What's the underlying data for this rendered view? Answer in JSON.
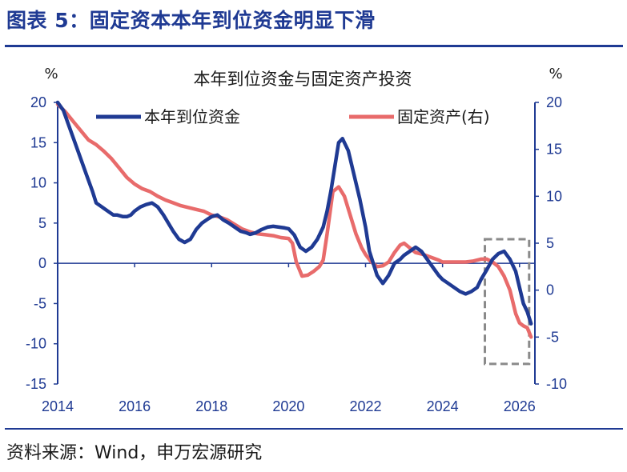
{
  "figure_title": "图表 5：固定资本本年到位资金明显下滑",
  "source": "资料来源：Wind，申万宏源研究",
  "colors": {
    "navy": "#1f3a93",
    "red": "#e86b6b",
    "box": "#8a8a8a"
  },
  "chart_data": {
    "type": "line",
    "title": "本年到位资金与固定资产投资",
    "left_unit": "%",
    "right_unit": "%",
    "ylim_left": [
      -15,
      20
    ],
    "ylim_right": [
      -10,
      20
    ],
    "xlim": [
      2014.0,
      2026.4
    ],
    "left_ticks": [
      "20",
      "15",
      "10",
      "5",
      "0",
      "-5",
      "-10",
      "-15"
    ],
    "right_ticks": [
      "20",
      "15",
      "10",
      "5",
      "0",
      "-5",
      "-10"
    ],
    "x_ticks": [
      "2014",
      "2016",
      "2018",
      "2020",
      "2022",
      "2024",
      "2026"
    ],
    "grid": false,
    "legend_position": "top",
    "series": [
      {
        "name": "本年到位资金",
        "axis": "left",
        "color": "#1f3a93",
        "x": [
          2014.0,
          2014.15,
          2014.3,
          2014.45,
          2014.6,
          2014.75,
          2014.9,
          2015.0,
          2015.15,
          2015.3,
          2015.45,
          2015.55,
          2015.7,
          2015.8,
          2015.9,
          2016.0,
          2016.15,
          2016.3,
          2016.45,
          2016.6,
          2016.75,
          2016.9,
          2017.0,
          2017.15,
          2017.3,
          2017.45,
          2017.6,
          2017.75,
          2017.9,
          2018.0,
          2018.15,
          2018.3,
          2018.45,
          2018.6,
          2018.75,
          2018.9,
          2019.0,
          2019.15,
          2019.3,
          2019.45,
          2019.6,
          2019.75,
          2019.9,
          2020.0,
          2020.15,
          2020.3,
          2020.45,
          2020.6,
          2020.75,
          2020.9,
          2021.0,
          2021.1,
          2021.2,
          2021.3,
          2021.4,
          2021.55,
          2021.7,
          2021.85,
          2022.0,
          2022.1,
          2022.2,
          2022.3,
          2022.45,
          2022.6,
          2022.75,
          2022.9,
          2023.0,
          2023.15,
          2023.3,
          2023.45,
          2023.6,
          2023.75,
          2023.9,
          2024.0,
          2024.15,
          2024.3,
          2024.45,
          2024.6,
          2024.75,
          2024.9,
          2025.0,
          2025.15,
          2025.3,
          2025.45,
          2025.6,
          2025.75,
          2025.9,
          2026.0,
          2026.1,
          2026.2,
          2026.3
        ],
        "y": [
          20,
          19,
          17,
          15,
          13,
          11,
          9,
          7.5,
          7,
          6.5,
          6,
          6,
          5.8,
          5.8,
          6,
          6.5,
          7,
          7.3,
          7.5,
          7,
          6,
          4.8,
          4,
          3,
          2.6,
          3,
          4.2,
          5,
          5.5,
          5.8,
          6,
          5.4,
          5,
          4.5,
          4,
          3.8,
          3.6,
          3.8,
          4.2,
          4.5,
          4.6,
          4.5,
          4.4,
          4.3,
          3.5,
          2,
          1.5,
          2,
          3,
          4.5,
          6.5,
          9,
          12,
          15,
          15.5,
          14,
          11,
          8,
          4.5,
          1.5,
          0,
          -1.5,
          -2.5,
          -1.5,
          0,
          0.5,
          1,
          1.5,
          2,
          1.5,
          0.5,
          -0.5,
          -1.5,
          -2,
          -2.5,
          -3,
          -3.5,
          -3.8,
          -3.5,
          -3,
          -2,
          -0.8,
          0.5,
          1.2,
          1.5,
          0.5,
          -1,
          -3,
          -5,
          -6,
          -7.5
        ]
      },
      {
        "name": "固定资产(右)",
        "axis": "right",
        "color": "#e86b6b",
        "x": [
          2014.0,
          2014.2,
          2014.4,
          2014.6,
          2014.8,
          2015.0,
          2015.2,
          2015.4,
          2015.6,
          2015.8,
          2016.0,
          2016.2,
          2016.4,
          2016.6,
          2016.8,
          2017.0,
          2017.2,
          2017.4,
          2017.6,
          2017.8,
          2018.0,
          2018.2,
          2018.4,
          2018.6,
          2018.8,
          2019.0,
          2019.2,
          2019.4,
          2019.6,
          2019.8,
          2020.0,
          2020.1,
          2020.2,
          2020.35,
          2020.5,
          2020.65,
          2020.8,
          2020.9,
          2021.0,
          2021.15,
          2021.3,
          2021.45,
          2021.6,
          2021.75,
          2021.9,
          2022.0,
          2022.15,
          2022.3,
          2022.45,
          2022.6,
          2022.75,
          2022.9,
          2023.0,
          2023.15,
          2023.3,
          2023.5,
          2023.7,
          2023.9,
          2024.0,
          2024.2,
          2024.4,
          2024.6,
          2024.8,
          2025.0,
          2025.15,
          2025.3,
          2025.45,
          2025.6,
          2025.75,
          2025.9,
          2026.0,
          2026.1,
          2026.2,
          2026.3
        ],
        "y": [
          19.8,
          19,
          18,
          17,
          16,
          15.5,
          14.8,
          14,
          13,
          12,
          11.3,
          10.8,
          10.5,
          10,
          9.6,
          9.3,
          9,
          8.8,
          8.6,
          8.4,
          8,
          7.8,
          7.5,
          7,
          6.5,
          6.2,
          6,
          5.9,
          5.8,
          5.6,
          5.5,
          5,
          3,
          1.5,
          1.6,
          2,
          2.5,
          3.2,
          6,
          10.5,
          11,
          10,
          8,
          6,
          4.5,
          3.8,
          3,
          2.5,
          2.6,
          3,
          4,
          4.8,
          5,
          4.5,
          4,
          3.8,
          3.5,
          3.2,
          3,
          3,
          3,
          3,
          3.1,
          3.3,
          3.3,
          3,
          2.5,
          1.5,
          0,
          -2.5,
          -3.5,
          -3.8,
          -4,
          -5
        ]
      }
    ],
    "annotation_box": {
      "x": [
        2025.1,
        2026.25
      ],
      "y_left": [
        -12.5,
        3
      ],
      "style": "dashed"
    }
  }
}
